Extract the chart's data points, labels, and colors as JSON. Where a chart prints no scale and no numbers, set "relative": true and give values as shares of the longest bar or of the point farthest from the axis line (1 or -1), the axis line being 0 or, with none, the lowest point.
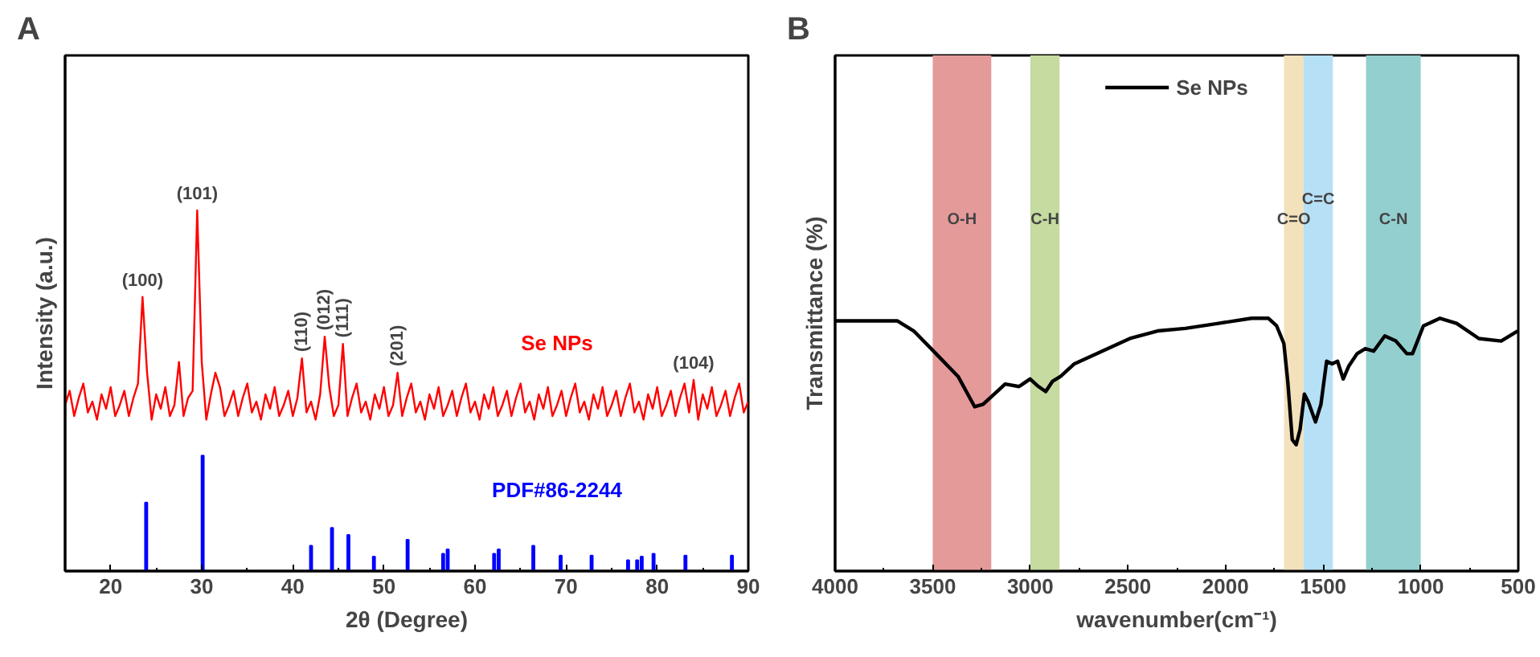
{
  "chart_data": [
    {
      "type": "line",
      "title": "A",
      "xlabel": "2θ (Degree)",
      "ylabel": "Intensity (a.u.)",
      "relative": true,
      "tick_labels": "x",
      "grid": false,
      "legend": false,
      "xlim": [
        15,
        90
      ],
      "xticks": [
        20,
        30,
        40,
        50,
        60,
        70,
        80,
        90
      ],
      "series": [
        {
          "name": "Se NPs",
          "type": "line",
          "color": "#ff0000",
          "x": [
            15,
            15.5,
            16,
            16.5,
            17,
            17.5,
            18,
            18.5,
            19,
            19.5,
            20,
            20.5,
            21,
            21.5,
            22,
            22.5,
            23,
            23.5,
            24,
            24.5,
            25,
            25.5,
            26,
            26.5,
            27,
            27.5,
            28,
            28.5,
            29,
            29.5,
            30,
            30.5,
            31,
            31.5,
            32,
            32.5,
            33,
            33.5,
            34,
            34.5,
            35,
            35.5,
            36,
            36.5,
            37,
            37.5,
            38,
            38.5,
            39,
            39.5,
            40,
            40.5,
            41,
            41.5,
            42,
            42.5,
            43,
            43.5,
            44,
            44.5,
            45,
            45.5,
            46,
            46.5,
            47,
            47.5,
            48,
            48.5,
            49,
            49.5,
            50,
            50.5,
            51,
            51.5,
            52,
            52.5,
            53,
            53.5,
            54,
            54.5,
            55,
            55.5,
            56,
            56.5,
            57,
            57.5,
            58,
            58.5,
            59,
            59.5,
            60,
            60.5,
            61,
            61.5,
            62,
            62.5,
            63,
            63.5,
            64,
            64.5,
            65,
            65.5,
            66,
            66.5,
            67,
            67.5,
            68,
            68.5,
            69,
            69.5,
            70,
            70.5,
            71,
            71.5,
            72,
            72.5,
            73,
            73.5,
            74,
            74.5,
            75,
            75.5,
            76,
            76.5,
            77,
            77.5,
            78,
            78.5,
            79,
            79.5,
            80,
            80.5,
            81,
            81.5,
            82,
            82.5,
            83,
            83.5,
            84,
            84.5,
            85,
            85.5,
            86,
            86.5,
            87,
            87.5,
            88,
            88.5,
            89,
            89.5,
            90
          ],
          "values": [
            0.46,
            0.5,
            0.43,
            0.48,
            0.52,
            0.44,
            0.47,
            0.42,
            0.49,
            0.45,
            0.51,
            0.43,
            0.46,
            0.5,
            0.43,
            0.48,
            0.52,
            0.76,
            0.55,
            0.42,
            0.49,
            0.45,
            0.51,
            0.43,
            0.46,
            0.58,
            0.43,
            0.48,
            0.5,
            1.0,
            0.58,
            0.42,
            0.49,
            0.55,
            0.51,
            0.43,
            0.46,
            0.5,
            0.43,
            0.48,
            0.52,
            0.44,
            0.47,
            0.42,
            0.49,
            0.45,
            0.51,
            0.43,
            0.46,
            0.5,
            0.43,
            0.48,
            0.59,
            0.44,
            0.47,
            0.42,
            0.49,
            0.65,
            0.51,
            0.43,
            0.46,
            0.63,
            0.43,
            0.48,
            0.52,
            0.44,
            0.47,
            0.42,
            0.49,
            0.45,
            0.51,
            0.43,
            0.46,
            0.55,
            0.43,
            0.48,
            0.52,
            0.44,
            0.47,
            0.42,
            0.49,
            0.45,
            0.51,
            0.43,
            0.46,
            0.5,
            0.43,
            0.48,
            0.52,
            0.44,
            0.47,
            0.42,
            0.49,
            0.45,
            0.51,
            0.43,
            0.46,
            0.5,
            0.43,
            0.48,
            0.52,
            0.44,
            0.47,
            0.42,
            0.49,
            0.45,
            0.51,
            0.43,
            0.46,
            0.5,
            0.43,
            0.48,
            0.52,
            0.44,
            0.47,
            0.42,
            0.49,
            0.45,
            0.51,
            0.43,
            0.46,
            0.5,
            0.43,
            0.48,
            0.52,
            0.44,
            0.47,
            0.42,
            0.49,
            0.45,
            0.51,
            0.43,
            0.46,
            0.5,
            0.43,
            0.48,
            0.52,
            0.44,
            0.53,
            0.42,
            0.49,
            0.45,
            0.51,
            0.43,
            0.46,
            0.5,
            0.43,
            0.48,
            0.52,
            0.44,
            0.47
          ]
        },
        {
          "name": "PDF#86-2244",
          "type": "bar",
          "color": "#0000ff",
          "x": [
            23.9,
            30.1,
            42.0,
            44.3,
            46.1,
            48.9,
            52.6,
            56.5,
            57.0,
            62.1,
            62.6,
            66.4,
            69.4,
            72.8,
            76.8,
            77.8,
            78.3,
            79.6,
            83.1,
            88.2
          ],
          "values": [
            0.19,
            0.32,
            0.07,
            0.12,
            0.1,
            0.04,
            0.087,
            0.048,
            0.06,
            0.048,
            0.06,
            0.07,
            0.043,
            0.043,
            0.03,
            0.03,
            0.04,
            0.048,
            0.043,
            0.043
          ]
        }
      ],
      "annotations": [
        {
          "text": "(100)",
          "x": 23.5,
          "y": 0.76
        },
        {
          "text": "(101)",
          "x": 29.5,
          "y": 1.0
        },
        {
          "text": "(110)",
          "x": 41.0,
          "y": 0.59
        },
        {
          "text": "(012)",
          "x": 43.5,
          "y": 0.65
        },
        {
          "text": "(111)",
          "x": 45.5,
          "y": 0.63
        },
        {
          "text": "(201)",
          "x": 51.5,
          "y": 0.55
        },
        {
          "text": "(104)",
          "x": 84.0,
          "y": 0.53
        }
      ]
    },
    {
      "type": "line",
      "title": "B",
      "xlabel": "wavenumber(cm⁻¹)",
      "ylabel": "Transmittance (%)",
      "relative": true,
      "tick_labels": "x",
      "grid": false,
      "legend": "top",
      "xlim": [
        4000,
        500
      ],
      "xticks": [
        4000,
        3500,
        3000,
        2500,
        2000,
        1500,
        1000,
        500
      ],
      "series": [
        {
          "name": "Se NPs",
          "color": "#000000",
          "x": [
            4000,
            3682,
            3597,
            3483,
            3370,
            3285,
            3242,
            3171,
            3129,
            3058,
            3001,
            2958,
            2921,
            2887,
            2845,
            2774,
            2632,
            2490,
            2348,
            2206,
            2036,
            1866,
            1780,
            1738,
            1701,
            1681,
            1658,
            1638,
            1618,
            1596,
            1576,
            1539,
            1511,
            1482,
            1454,
            1426,
            1397,
            1369,
            1326,
            1284,
            1241,
            1184,
            1127,
            1071,
            1042,
            986,
            901,
            816,
            702,
            588,
            503
          ],
          "values": [
            0.99,
            0.99,
            0.95,
            0.86,
            0.77,
            0.65,
            0.66,
            0.71,
            0.74,
            0.73,
            0.76,
            0.73,
            0.71,
            0.75,
            0.77,
            0.82,
            0.87,
            0.92,
            0.95,
            0.96,
            0.98,
            1.0,
            1.0,
            0.97,
            0.9,
            0.75,
            0.52,
            0.5,
            0.56,
            0.7,
            0.67,
            0.59,
            0.66,
            0.83,
            0.82,
            0.83,
            0.76,
            0.81,
            0.86,
            0.88,
            0.87,
            0.93,
            0.91,
            0.86,
            0.86,
            0.97,
            1.0,
            0.98,
            0.92,
            0.91,
            0.95
          ]
        }
      ],
      "bands": [
        {
          "axis": "x",
          "from": 3500,
          "to": 3200,
          "label": "O-H",
          "color": "#e59a9a"
        },
        {
          "axis": "x",
          "from": 3000,
          "to": 2850,
          "label": "C-H",
          "color": "#c5dba0"
        },
        {
          "axis": "x",
          "from": 1700,
          "to": 1600,
          "label": "C=O",
          "color": "#f3e1bc"
        },
        {
          "axis": "x",
          "from": 1600,
          "to": 1450,
          "label": "C=C",
          "color": "#b6e0f6"
        },
        {
          "axis": "x",
          "from": 1280,
          "to": 1000,
          "label": "C-N",
          "color": "#93cfcf"
        }
      ]
    }
  ]
}
